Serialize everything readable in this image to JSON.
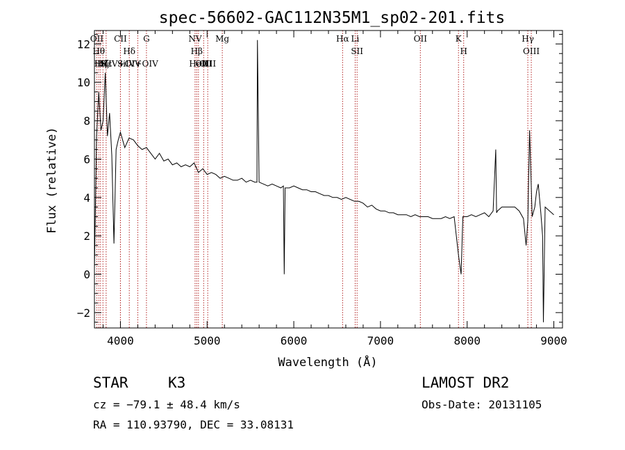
{
  "chart_data": {
    "type": "line",
    "title": "spec-56602-GAC112N35M1_sp02-201.fits",
    "xlabel": "Wavelength (Å)",
    "ylabel": "Flux (relative)",
    "xlim": [
      3700,
      9100
    ],
    "ylim": [
      -2.8,
      12.7
    ],
    "xticks": [
      4000,
      5000,
      6000,
      7000,
      8000,
      9000
    ],
    "yticks": [
      -2,
      0,
      2,
      4,
      6,
      8,
      10,
      12
    ],
    "series": [
      {
        "x": [
          3700,
          3725,
          3750,
          3775,
          3800,
          3825,
          3850,
          3875,
          3900,
          3925,
          3950,
          3975,
          4000,
          4050,
          4100,
          4150,
          4200,
          4250,
          4300,
          4350,
          4400,
          4450,
          4500,
          4550,
          4600,
          4650,
          4700,
          4750,
          4800,
          4850,
          4900,
          4950,
          5000,
          5050,
          5100,
          5150,
          5200,
          5250,
          5300,
          5350,
          5400,
          5450,
          5500,
          5550,
          5575,
          5580,
          5600,
          5650,
          5700,
          5750,
          5800,
          5850,
          5880,
          5890,
          5900,
          5950,
          6000,
          6050,
          6100,
          6150,
          6200,
          6250,
          6300,
          6350,
          6400,
          6450,
          6500,
          6550,
          6600,
          6650,
          6700,
          6750,
          6800,
          6850,
          6900,
          6950,
          7000,
          7050,
          7100,
          7150,
          7200,
          7250,
          7300,
          7350,
          7400,
          7450,
          7500,
          7550,
          7600,
          7650,
          7700,
          7750,
          7800,
          7850,
          7900,
          7930,
          7950,
          8000,
          8050,
          8100,
          8150,
          8200,
          8250,
          8300,
          8330,
          8340,
          8350,
          8400,
          8450,
          8500,
          8550,
          8600,
          8650,
          8680,
          8700,
          8720,
          8750,
          8780,
          8800,
          8820,
          8850,
          8870,
          8880,
          8900,
          8950,
          9000
        ],
        "y": [
          0.3,
          7.2,
          9.5,
          7.5,
          8.0,
          10.5,
          7.2,
          8.4,
          6.2,
          1.6,
          6.5,
          7.0,
          7.4,
          6.6,
          7.1,
          7.0,
          6.7,
          6.5,
          6.6,
          6.3,
          6.0,
          6.3,
          5.9,
          6.0,
          5.7,
          5.8,
          5.6,
          5.7,
          5.6,
          5.8,
          5.3,
          5.5,
          5.2,
          5.3,
          5.2,
          5.0,
          5.1,
          5.0,
          4.9,
          4.9,
          5.0,
          4.8,
          4.9,
          4.8,
          4.8,
          12.2,
          4.8,
          4.7,
          4.6,
          4.7,
          4.6,
          4.5,
          4.6,
          0.0,
          4.5,
          4.5,
          4.6,
          4.5,
          4.4,
          4.4,
          4.3,
          4.3,
          4.2,
          4.1,
          4.1,
          4.0,
          4.0,
          3.9,
          4.0,
          3.9,
          3.8,
          3.8,
          3.7,
          3.5,
          3.6,
          3.4,
          3.3,
          3.3,
          3.2,
          3.2,
          3.1,
          3.1,
          3.1,
          3.0,
          3.1,
          3.0,
          3.0,
          3.0,
          2.9,
          2.9,
          2.9,
          3.0,
          2.9,
          3.0,
          1.0,
          0.0,
          3.0,
          3.0,
          3.1,
          3.0,
          3.1,
          3.2,
          3.0,
          3.3,
          6.5,
          3.2,
          3.3,
          3.5,
          3.5,
          3.5,
          3.5,
          3.3,
          2.9,
          1.5,
          2.8,
          7.5,
          3.0,
          3.5,
          4.3,
          4.7,
          3.2,
          2.0,
          -2.5,
          3.5,
          3.3,
          3.1
        ]
      }
    ],
    "lines": [
      {
        "x": 3727,
        "label": "OII"
      },
      {
        "x": 3750,
        "label": "Hθ"
      },
      {
        "x": 3770,
        "label": "Hη"
      },
      {
        "x": 3798,
        "label": "Hζ"
      },
      {
        "x": 3835,
        "label": "Hε"
      },
      {
        "x": 4000,
        "label": "SiIV+OIV"
      },
      {
        "x": 4000,
        "label": "CII"
      },
      {
        "x": 4102,
        "label": "Hδ"
      },
      {
        "x": 4200,
        "label": "SiIV+OIV"
      },
      {
        "x": 4300,
        "label": "G"
      },
      {
        "x": 4861,
        "label": "NV"
      },
      {
        "x": 4880,
        "label": "Hβ"
      },
      {
        "x": 4900,
        "label": "HeII"
      },
      {
        "x": 4960,
        "label": "OIII"
      },
      {
        "x": 5007,
        "label": "OIII"
      },
      {
        "x": 5175,
        "label": "Mg"
      },
      {
        "x": 6563,
        "label": "Hα"
      },
      {
        "x": 6708,
        "label": "Li"
      },
      {
        "x": 6730,
        "label": "SII"
      },
      {
        "x": 7460,
        "label": "OII"
      },
      {
        "x": 7900,
        "label": "K"
      },
      {
        "x": 7960,
        "label": "H"
      },
      {
        "x": 8700,
        "label": "Hγ"
      },
      {
        "x": 8740,
        "label": "OIII"
      }
    ]
  },
  "info": {
    "class": "STAR",
    "subclass": "K3",
    "survey": "LAMOST DR2",
    "cz": "cz = −79.1 ± 48.4 km/s",
    "obs_date": "Obs-Date: 20131105",
    "radec": "RA = 110.93790, DEC =  33.08131"
  }
}
